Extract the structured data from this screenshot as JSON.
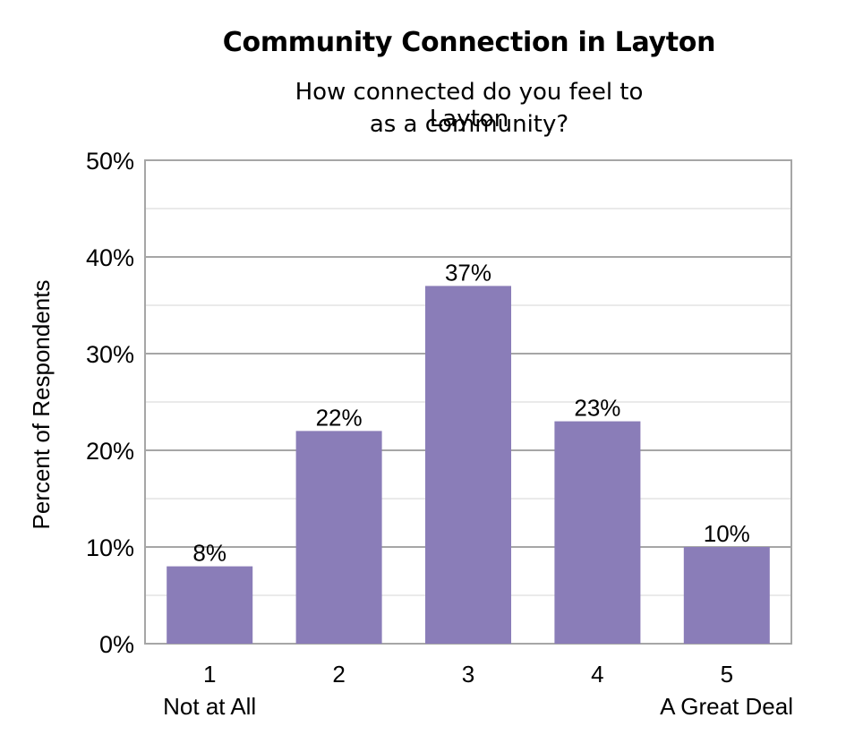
{
  "chart_data": {
    "type": "bar",
    "title": "Community Connection in Layton",
    "subtitle_lines": [
      "How connected do you feel to Layton",
      "as a community?"
    ],
    "ylabel": "Percent of Respondents",
    "xlabel": "",
    "categories": [
      "1",
      "2",
      "3",
      "4",
      "5"
    ],
    "category_sublabels": [
      "Not at All",
      "",
      "",
      "",
      "A Great Deal"
    ],
    "values": [
      8,
      22,
      37,
      23,
      10
    ],
    "value_labels": [
      "8%",
      "22%",
      "37%",
      "23%",
      "10%"
    ],
    "ylim": [
      0,
      50
    ],
    "yticks": [
      0,
      10,
      20,
      30,
      40,
      50
    ],
    "ytick_labels": [
      "0%",
      "10%",
      "20%",
      "30%",
      "40%",
      "50%"
    ],
    "grid": true,
    "minor_grid": true,
    "legend": "none",
    "bar_color": "#8a7db8"
  }
}
